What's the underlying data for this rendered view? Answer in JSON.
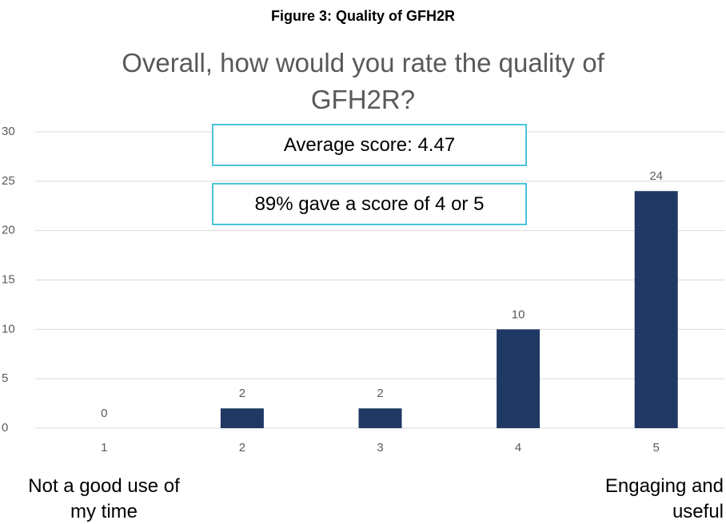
{
  "chart_data": {
    "type": "bar",
    "caption": "Figure 3: Quality of GFH2R",
    "title": "Overall, how would you rate the quality of GFH2R?",
    "categories": [
      "1",
      "2",
      "3",
      "4",
      "5"
    ],
    "values": [
      0,
      2,
      2,
      10,
      24
    ],
    "color": "#1f3864",
    "ylim": [
      0,
      30
    ],
    "yticks": [
      0,
      5,
      10,
      15,
      20,
      25,
      30
    ],
    "grid": true,
    "annotations": [
      "Average score: 4.47",
      "89% gave a score of 4 or 5"
    ],
    "x_axis_low_label": "Not a good use of my time",
    "x_axis_high_label": "Engaging and useful"
  }
}
